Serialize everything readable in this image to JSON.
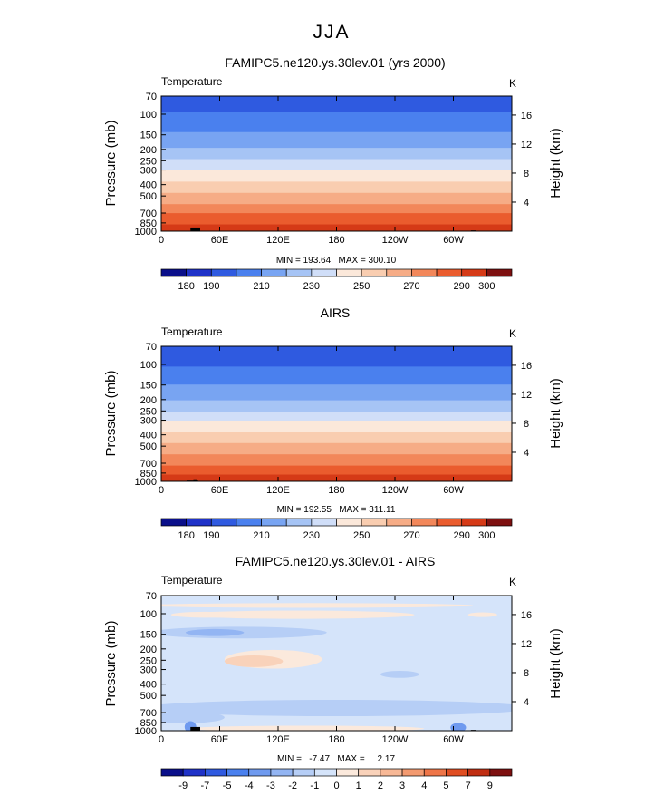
{
  "figure_title": "JJA",
  "chart_data": [
    {
      "type": "heatmap",
      "title": "FAMIPC5.ne120.ys.30lev.01 (yrs 2000)",
      "field_label": "Temperature",
      "units": "K",
      "ylabel": "Pressure (mb)",
      "y2label": "Height (km)",
      "x_ticks": [
        "0",
        "60E",
        "120E",
        "180",
        "120W",
        "60W"
      ],
      "x_tick_lon": [
        0,
        60,
        120,
        180,
        240,
        300
      ],
      "xlim": [
        0,
        360
      ],
      "y_ticks": [
        "70",
        "100",
        "150",
        "200",
        "250",
        "300",
        "400",
        "500",
        "700",
        "850",
        "1000"
      ],
      "y_tick_p": [
        70,
        100,
        150,
        200,
        250,
        300,
        400,
        500,
        700,
        850,
        1000
      ],
      "ylim": [
        1000,
        70
      ],
      "y_scale": "log",
      "height_ticks": [
        "4",
        "8",
        "12",
        "16"
      ],
      "height_tick_km": [
        4,
        8,
        12,
        16
      ],
      "stats": "MIN = 193.64   MAX = 300.10",
      "colorbar": {
        "levels": [
          180,
          190,
          200,
          210,
          220,
          230,
          240,
          250,
          260,
          270,
          280,
          290,
          300
        ],
        "labels": [
          "180",
          "190",
          "210",
          "230",
          "250",
          "270",
          "290",
          "300"
        ],
        "colors": [
          "#0a0f8a",
          "#1f32c8",
          "#2f5ae0",
          "#4a80ee",
          "#78a4f2",
          "#a6c4f5",
          "#d0def8",
          "#fbe8da",
          "#f9cdb0",
          "#f6ac86",
          "#f2875a",
          "#ea5c2e",
          "#d53a17",
          "#7d1010"
        ]
      },
      "profile": [
        {
          "p": 70,
          "v": 196
        },
        {
          "p": 100,
          "v": 201
        },
        {
          "p": 150,
          "v": 212
        },
        {
          "p": 200,
          "v": 222
        },
        {
          "p": 250,
          "v": 232
        },
        {
          "p": 300,
          "v": 241
        },
        {
          "p": 400,
          "v": 254
        },
        {
          "p": 500,
          "v": 264
        },
        {
          "p": 700,
          "v": 280
        },
        {
          "p": 850,
          "v": 290
        },
        {
          "p": 1000,
          "v": 298
        }
      ]
    },
    {
      "type": "heatmap",
      "title": "AIRS",
      "field_label": "Temperature",
      "units": "K",
      "ylabel": "Pressure (mb)",
      "y2label": "Height (km)",
      "x_ticks": [
        "0",
        "60E",
        "120E",
        "180",
        "120W",
        "60W"
      ],
      "x_tick_lon": [
        0,
        60,
        120,
        180,
        240,
        300
      ],
      "xlim": [
        0,
        360
      ],
      "y_ticks": [
        "70",
        "100",
        "150",
        "200",
        "250",
        "300",
        "400",
        "500",
        "700",
        "850",
        "1000"
      ],
      "y_tick_p": [
        70,
        100,
        150,
        200,
        250,
        300,
        400,
        500,
        700,
        850,
        1000
      ],
      "ylim": [
        1000,
        70
      ],
      "y_scale": "log",
      "height_ticks": [
        "4",
        "8",
        "12",
        "16"
      ],
      "height_tick_km": [
        4,
        8,
        12,
        16
      ],
      "stats": "MIN = 192.55   MAX = 311.11",
      "colorbar": {
        "levels": [
          180,
          190,
          200,
          210,
          220,
          230,
          240,
          250,
          260,
          270,
          280,
          290,
          300
        ],
        "labels": [
          "180",
          "190",
          "210",
          "230",
          "250",
          "270",
          "290",
          "300"
        ],
        "colors": [
          "#0a0f8a",
          "#1f32c8",
          "#2f5ae0",
          "#4a80ee",
          "#78a4f2",
          "#a6c4f5",
          "#d0def8",
          "#fbe8da",
          "#f9cdb0",
          "#f6ac86",
          "#f2875a",
          "#ea5c2e",
          "#d53a17",
          "#7d1010"
        ]
      },
      "profile": [
        {
          "p": 70,
          "v": 195
        },
        {
          "p": 100,
          "v": 200
        },
        {
          "p": 150,
          "v": 211
        },
        {
          "p": 200,
          "v": 221
        },
        {
          "p": 250,
          "v": 231
        },
        {
          "p": 300,
          "v": 240
        },
        {
          "p": 400,
          "v": 253
        },
        {
          "p": 500,
          "v": 263
        },
        {
          "p": 700,
          "v": 279
        },
        {
          "p": 850,
          "v": 289
        },
        {
          "p": 1000,
          "v": 301
        }
      ]
    },
    {
      "type": "heatmap",
      "title": "FAMIPC5.ne120.ys.30lev.01 - AIRS",
      "field_label": "Temperature",
      "units": "K",
      "ylabel": "Pressure (mb)",
      "y2label": "Height (km)",
      "x_ticks": [
        "0",
        "60E",
        "120E",
        "180",
        "120W",
        "60W"
      ],
      "x_tick_lon": [
        0,
        60,
        120,
        180,
        240,
        300
      ],
      "xlim": [
        0,
        360
      ],
      "y_ticks": [
        "70",
        "100",
        "150",
        "200",
        "250",
        "300",
        "400",
        "500",
        "700",
        "850",
        "1000"
      ],
      "y_tick_p": [
        70,
        100,
        150,
        200,
        250,
        300,
        400,
        500,
        700,
        850,
        1000
      ],
      "ylim": [
        1000,
        70
      ],
      "y_scale": "log",
      "height_ticks": [
        "4",
        "8",
        "12",
        "16"
      ],
      "height_tick_km": [
        4,
        8,
        12,
        16
      ],
      "stats": "MIN =   -7.47   MAX =     2.17",
      "colorbar": {
        "levels": [
          -9,
          -7,
          -5,
          -4,
          -3,
          -2,
          -1,
          0,
          1,
          2,
          3,
          4,
          5,
          7,
          9
        ],
        "labels": [
          "-9",
          "-7",
          "-5",
          "-4",
          "-3",
          "-2",
          "-1",
          "0",
          "1",
          "2",
          "3",
          "4",
          "5",
          "7",
          "9"
        ],
        "colors": [
          "#0a0f8a",
          "#1f32c8",
          "#2f5ae0",
          "#4a80ee",
          "#6f9aef",
          "#93b5f3",
          "#b6cef6",
          "#d5e4fa",
          "#fbe9dc",
          "#f9d2ba",
          "#f7b896",
          "#f39a70",
          "#ee7548",
          "#e04e22",
          "#c02e12",
          "#7d1010"
        ]
      },
      "base_value": -0.5,
      "anomalies": [
        {
          "lon": 150,
          "p": 85,
          "dlon": 170,
          "dlogp": 0.02,
          "v": 0.5
        },
        {
          "lon": 45,
          "p": 102,
          "dlon": 35,
          "dlogp": 0.025,
          "v": 0.5
        },
        {
          "lon": 330,
          "p": 102,
          "dlon": 15,
          "dlogp": 0.02,
          "v": 0.5
        },
        {
          "lon": 140,
          "p": 102,
          "dlon": 120,
          "dlogp": 0.035,
          "v": 0.5
        },
        {
          "lon": 80,
          "p": 145,
          "dlon": 90,
          "dlogp": 0.05,
          "v": -1.5
        },
        {
          "lon": 55,
          "p": 145,
          "dlon": 30,
          "dlogp": 0.03,
          "v": -2.5
        },
        {
          "lon": 115,
          "p": 245,
          "dlon": 50,
          "dlogp": 0.08,
          "v": 0.5
        },
        {
          "lon": 95,
          "p": 255,
          "dlon": 30,
          "dlogp": 0.05,
          "v": 1.5
        },
        {
          "lon": 245,
          "p": 330,
          "dlon": 20,
          "dlogp": 0.03,
          "v": -1.5
        },
        {
          "lon": 180,
          "p": 640,
          "dlon": 200,
          "dlogp": 0.07,
          "v": -1.5
        },
        {
          "lon": 25,
          "p": 770,
          "dlon": 40,
          "dlogp": 0.05,
          "v": -1.5
        },
        {
          "lon": 150,
          "p": 960,
          "dlon": 120,
          "dlogp": 0.025,
          "v": 0.5
        },
        {
          "lon": 30,
          "p": 930,
          "dlon": 6,
          "dlogp": 0.05,
          "v": -3.5
        },
        {
          "lon": 305,
          "p": 940,
          "dlon": 8,
          "dlogp": 0.04,
          "v": -3.5
        }
      ]
    }
  ]
}
